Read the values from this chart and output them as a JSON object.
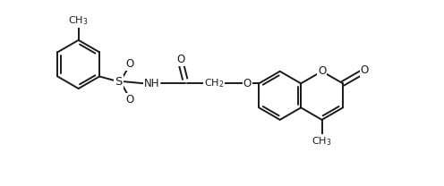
{
  "bg": "#ffffff",
  "lc": "#1a1a1a",
  "lw": 1.4,
  "fs": 8.5,
  "figsize": [
    4.96,
    2.08
  ],
  "dpi": 100,
  "xlim": [
    -2.6,
    3.2
  ],
  "ylim": [
    -1.35,
    1.55
  ]
}
